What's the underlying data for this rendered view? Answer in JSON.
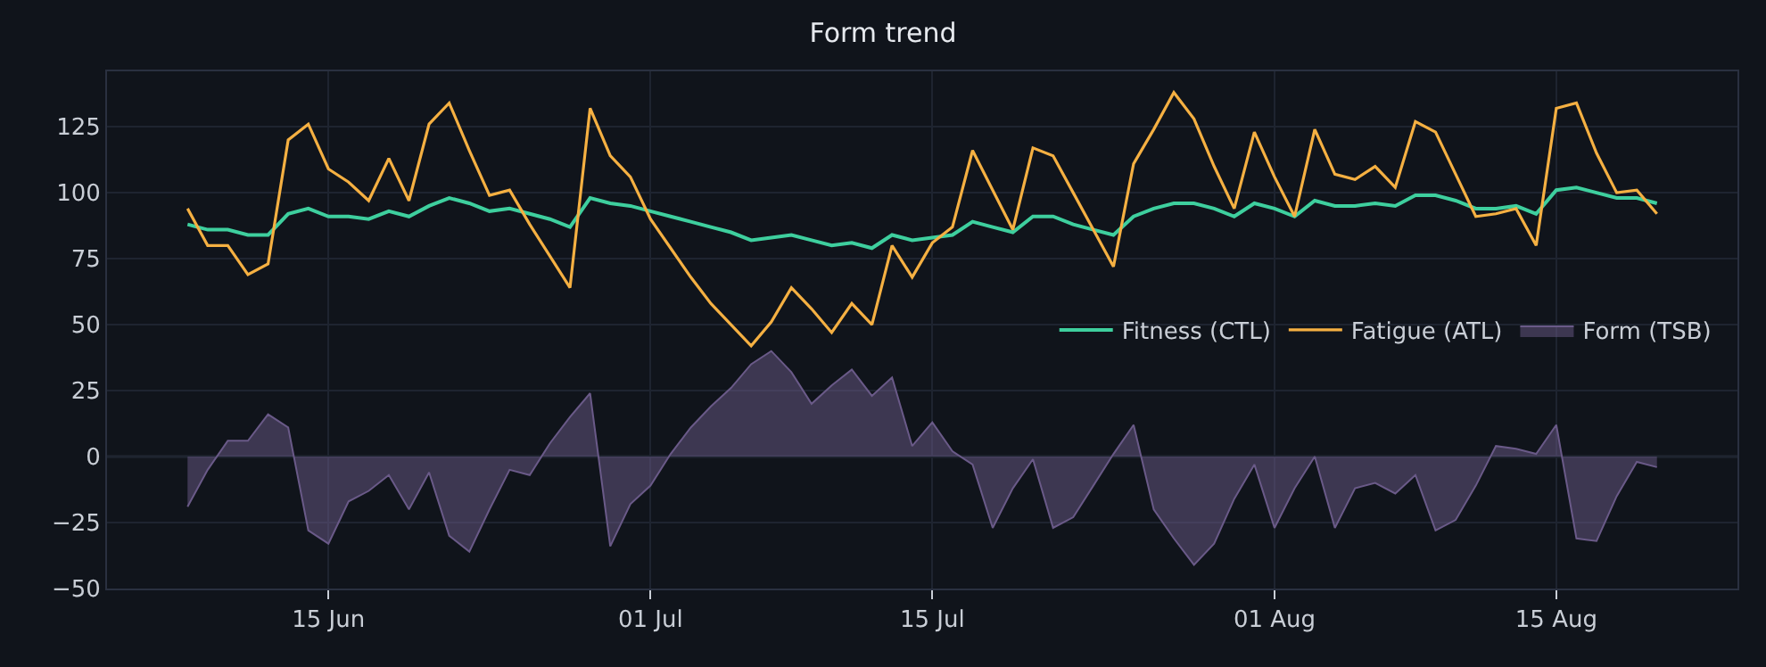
{
  "chart_data": {
    "type": "line",
    "title": "Form trend",
    "x": [
      "--06-08",
      "--06-09",
      "--06-10",
      "--06-11",
      "--06-12",
      "--06-13",
      "--06-14",
      "--06-15",
      "--06-16",
      "--06-17",
      "--06-18",
      "--06-19",
      "--06-20",
      "--06-21",
      "--06-22",
      "--06-23",
      "--06-24",
      "--06-25",
      "--06-26",
      "--06-27",
      "--06-28",
      "--06-29",
      "--06-30",
      "--07-01",
      "--07-02",
      "--07-03",
      "--07-04",
      "--07-05",
      "--07-06",
      "--07-07",
      "--07-08",
      "--07-09",
      "--07-10",
      "--07-11",
      "--07-12",
      "--07-13",
      "--07-14",
      "--07-15",
      "--07-16",
      "--07-17",
      "--07-18",
      "--07-19",
      "--07-20",
      "--07-21",
      "--07-22",
      "--07-23",
      "--07-24",
      "--07-25",
      "--07-26",
      "--07-27",
      "--07-28",
      "--07-29",
      "--07-30",
      "--07-31",
      "--08-01",
      "--08-02",
      "--08-03",
      "--08-04",
      "--08-05",
      "--08-06",
      "--08-07",
      "--08-08",
      "--08-09",
      "--08-10",
      "--08-11",
      "--08-12",
      "--08-13",
      "--08-14",
      "--08-15",
      "--08-16",
      "--08-17",
      "--08-18",
      "--08-19",
      "--08-20"
    ],
    "series": [
      {
        "name": "Fitness (CTL)",
        "color": "#3ecf9e",
        "values": [
          88,
          86,
          86,
          84,
          84,
          92,
          94,
          91,
          91,
          90,
          93,
          91,
          95,
          98,
          96,
          93,
          94,
          92,
          90,
          87,
          98,
          96,
          95,
          93,
          91,
          89,
          87,
          85,
          82,
          83,
          84,
          82,
          80,
          81,
          79,
          84,
          82,
          83,
          84,
          89,
          87,
          85,
          91,
          91,
          88,
          86,
          84,
          91,
          94,
          96,
          96,
          94,
          91,
          96,
          94,
          91,
          97,
          95,
          95,
          96,
          95,
          99,
          99,
          97,
          94,
          94,
          95,
          92,
          101,
          102,
          100,
          98,
          98,
          96
        ]
      },
      {
        "name": "Fatigue (ATL)",
        "color": "#f5b042",
        "values": [
          94,
          80,
          80,
          69,
          73,
          120,
          126,
          109,
          104,
          97,
          113,
          97,
          126,
          134,
          116,
          99,
          101,
          88,
          76,
          64,
          132,
          114,
          106,
          90,
          79,
          68,
          58,
          50,
          42,
          51,
          64,
          56,
          47,
          58,
          50,
          80,
          68,
          81,
          87,
          116,
          101,
          86,
          117,
          114,
          100,
          86,
          72,
          111,
          124,
          138,
          128,
          110,
          94,
          123,
          106,
          91,
          124,
          107,
          105,
          110,
          102,
          127,
          123,
          107,
          91,
          92,
          94,
          80,
          132,
          134,
          115,
          100,
          101,
          92
        ]
      },
      {
        "name": "Form (TSB)",
        "type": "area",
        "color": "#6a5a88",
        "values": [
          -19,
          -5,
          6,
          6,
          16,
          11,
          -28,
          -33,
          -17,
          -13,
          -7,
          -20,
          -6,
          -30,
          -36,
          -20,
          -5,
          -7,
          5,
          15,
          24,
          -34,
          -18,
          -11,
          1,
          11,
          19,
          26,
          35,
          40,
          32,
          20,
          27,
          33,
          23,
          30,
          4,
          13,
          2,
          -3,
          -27,
          -12,
          -1,
          -27,
          -23,
          -11,
          1,
          12,
          -20,
          -31,
          -41,
          -33,
          -16,
          -3,
          -27,
          -12,
          0,
          -27,
          -12,
          -10,
          -14,
          -7,
          -28,
          -24,
          -11,
          4,
          3,
          1,
          12,
          -31,
          -32,
          -15,
          -2,
          -4
        ]
      }
    ],
    "xlim": [
      "--06-04",
      "--08-24"
    ],
    "xticks": [
      {
        "value": "--06-15",
        "label": "15 Jun"
      },
      {
        "value": "--07-01",
        "label": "01 Jul"
      },
      {
        "value": "--07-15",
        "label": "15 Jul"
      },
      {
        "value": "--08-01",
        "label": "01 Aug"
      },
      {
        "value": "--08-15",
        "label": "15 Aug"
      }
    ],
    "ylim": [
      -50,
      146
    ],
    "yticks": [
      -50,
      -25,
      0,
      25,
      50,
      75,
      100,
      125
    ],
    "ref_lines": [
      {
        "axis": "y",
        "value": 0,
        "color": "#3a4050"
      }
    ],
    "grid": true,
    "legend": "right",
    "marker": "none",
    "line_style": "solid"
  }
}
